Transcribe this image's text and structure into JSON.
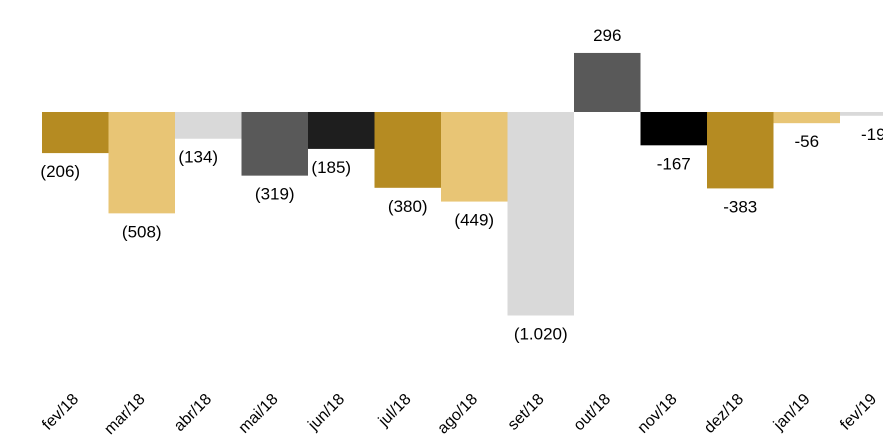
{
  "chart_data": {
    "type": "bar",
    "title": "",
    "xlabel": "",
    "ylabel": "",
    "ylim": [
      -1020,
      296
    ],
    "grid": false,
    "legend": "none",
    "categories": [
      "fev/18",
      "mar/18",
      "abr/18",
      "mai/18",
      "jun/18",
      "jul/18",
      "ago/18",
      "set/18",
      "out/18",
      "nov/18",
      "dez/18",
      "jan/19",
      "fev/19"
    ],
    "values": [
      -206,
      -508,
      -134,
      -319,
      -185,
      -380,
      -449,
      -1020,
      296,
      -167,
      -383,
      -56,
      -19
    ],
    "data_labels": [
      "(206)",
      "(508)",
      "(134)",
      "(319)",
      "(185)",
      "(380)",
      "(449)",
      "(1.020)",
      "296",
      "-167",
      "-383",
      "-56",
      "-19"
    ],
    "colors": [
      "#B58B22",
      "#E8C575",
      "#D9D9D9",
      "#595959",
      "#1E1E1E",
      "#B58B22",
      "#E8C575",
      "#D9D9D9",
      "#595959",
      "#000000",
      "#B58B22",
      "#E8C575",
      "#D9D9D9"
    ]
  }
}
